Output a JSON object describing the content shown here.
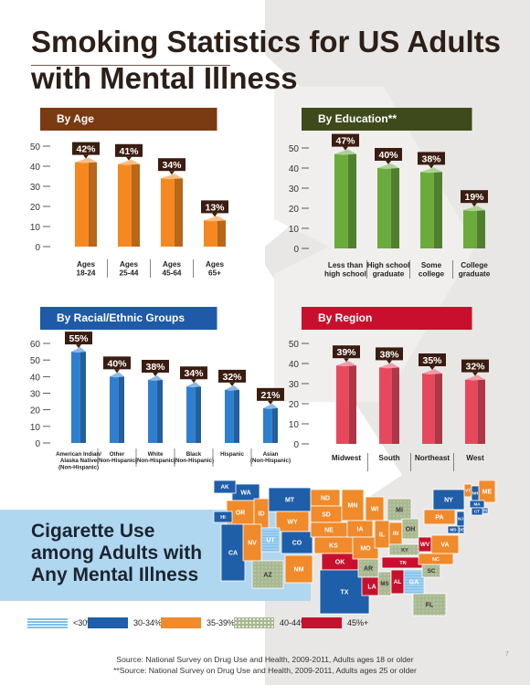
{
  "title_line1": "Smoking Statistics for US Adults",
  "title_line2": "with Mental Illness",
  "colors": {
    "age": "#7a3a12",
    "education": "#3f4a1c",
    "race": "#1e5aa8",
    "region": "#c8102e"
  },
  "chart_data": [
    {
      "type": "bar",
      "title": "By Age",
      "categories": [
        "Ages\n18-24",
        "Ages\n25-44",
        "Ages\n45-64",
        "Ages\n65+"
      ],
      "values": [
        42,
        41,
        34,
        13
      ],
      "labels": [
        "42%",
        "41%",
        "34%",
        "13%"
      ],
      "yticks": [
        0,
        10,
        20,
        30,
        40,
        50
      ],
      "ylim": [
        0,
        50
      ],
      "bar_color": "#f5881f"
    },
    {
      "type": "bar",
      "title": "By Education**",
      "categories": [
        "Less than\nhigh school",
        "High school\ngraduate",
        "Some\ncollege",
        "College\ngraduate"
      ],
      "values": [
        47,
        40,
        38,
        19
      ],
      "labels": [
        "47%",
        "40%",
        "38%",
        "19%"
      ],
      "yticks": [
        0,
        10,
        20,
        30,
        40,
        50
      ],
      "ylim": [
        0,
        50
      ],
      "bar_color": "#6aab3c"
    },
    {
      "type": "bar",
      "title": "By Racial/Ethnic Groups",
      "categories": [
        "American Indian/\nAlaska Native\n(Non-Hispanic)",
        "Other\n(Non-Hispanic)",
        "White\n(Non-Hispanic)",
        "Black\n(Non-Hispanic)",
        "Hispanic",
        "Asian\n(Non-Hispanic)"
      ],
      "values": [
        55,
        40,
        38,
        34,
        32,
        21
      ],
      "labels": [
        "55%",
        "40%",
        "38%",
        "34%",
        "32%",
        "21%"
      ],
      "yticks": [
        0,
        10,
        20,
        30,
        40,
        50,
        60
      ],
      "ylim": [
        0,
        60
      ],
      "bar_color": "#2f7fd0"
    },
    {
      "type": "bar",
      "title": "By Region",
      "categories": [
        "Midwest",
        "South",
        "Northeast",
        "West"
      ],
      "values": [
        39,
        38,
        35,
        32
      ],
      "labels": [
        "39%",
        "38%",
        "35%",
        "32%"
      ],
      "yticks": [
        0,
        10,
        20,
        30,
        40,
        50
      ],
      "ylim": [
        0,
        50
      ],
      "bar_color": "#e8485e"
    }
  ],
  "map": {
    "title_line1": "Cigarette Use",
    "title_line2": "among Adults with",
    "title_line3": "Any Mental Illness",
    "legend": [
      {
        "label": "<30%",
        "color": "#7fc0ea"
      },
      {
        "label": "30-34%",
        "color": "#1f5ea8"
      },
      {
        "label": "35-39%",
        "color": "#f08a2a"
      },
      {
        "label": "40-44%",
        "color": "#a8b890"
      },
      {
        "label": "45%+",
        "color": "#c8102e"
      }
    ],
    "states": [
      {
        "abbr": "WA",
        "bin": 1
      },
      {
        "abbr": "OR",
        "bin": 2
      },
      {
        "abbr": "ID",
        "bin": 2
      },
      {
        "abbr": "MT",
        "bin": 1
      },
      {
        "abbr": "WY",
        "bin": 2
      },
      {
        "abbr": "CA",
        "bin": 1
      },
      {
        "abbr": "NV",
        "bin": 2
      },
      {
        "abbr": "UT",
        "bin": 0
      },
      {
        "abbr": "CO",
        "bin": 1
      },
      {
        "abbr": "AZ",
        "bin": 3
      },
      {
        "abbr": "NM",
        "bin": 2
      },
      {
        "abbr": "ND",
        "bin": 2
      },
      {
        "abbr": "SD",
        "bin": 2
      },
      {
        "abbr": "NE",
        "bin": 2
      },
      {
        "abbr": "KS",
        "bin": 2
      },
      {
        "abbr": "OK",
        "bin": 4
      },
      {
        "abbr": "TX",
        "bin": 1
      },
      {
        "abbr": "MN",
        "bin": 2
      },
      {
        "abbr": "IA",
        "bin": 2
      },
      {
        "abbr": "MO",
        "bin": 2
      },
      {
        "abbr": "AR",
        "bin": 3
      },
      {
        "abbr": "LA",
        "bin": 4
      },
      {
        "abbr": "WI",
        "bin": 2
      },
      {
        "abbr": "IL",
        "bin": 2
      },
      {
        "abbr": "MS",
        "bin": 3
      },
      {
        "abbr": "AL",
        "bin": 4
      },
      {
        "abbr": "MI",
        "bin": 3
      },
      {
        "abbr": "IN",
        "bin": 2
      },
      {
        "abbr": "OH",
        "bin": 3
      },
      {
        "abbr": "KY",
        "bin": 3
      },
      {
        "abbr": "TN",
        "bin": 4
      },
      {
        "abbr": "GA",
        "bin": 0
      },
      {
        "abbr": "FL",
        "bin": 3
      },
      {
        "abbr": "SC",
        "bin": 3
      },
      {
        "abbr": "NC",
        "bin": 2
      },
      {
        "abbr": "WV",
        "bin": 4
      },
      {
        "abbr": "VA",
        "bin": 2
      },
      {
        "abbr": "PA",
        "bin": 2
      },
      {
        "abbr": "NY",
        "bin": 1
      },
      {
        "abbr": "VT",
        "bin": 2
      },
      {
        "abbr": "ME",
        "bin": 2
      },
      {
        "abbr": "NH",
        "bin": 1
      },
      {
        "abbr": "MA",
        "bin": 1
      },
      {
        "abbr": "RI",
        "bin": 1
      },
      {
        "abbr": "CT",
        "bin": 1
      },
      {
        "abbr": "NJ",
        "bin": 1
      },
      {
        "abbr": "DE",
        "bin": 1
      },
      {
        "abbr": "MD",
        "bin": 1
      },
      {
        "abbr": "AK",
        "bin": 1
      },
      {
        "abbr": "HI",
        "bin": 1
      }
    ]
  },
  "source1": "Source: National Survey on Drug Use and Health, 2009-2011, Adults ages 18 or older",
  "source2": "**Source: National Survey on Drug Use and Health, 2009-2011, Adults ages 25 or older",
  "page_number": "7"
}
